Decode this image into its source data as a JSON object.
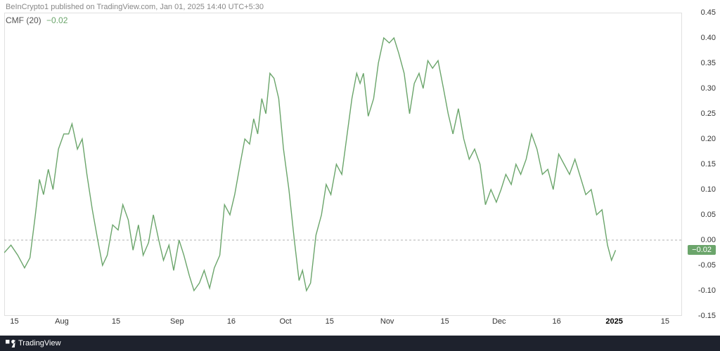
{
  "header": {
    "attribution": "BeInCrypto1 published on TradingView.com, Jan 01, 2025 14:40 UTC+5:30"
  },
  "indicator": {
    "name": "CMF (20)",
    "value": "−0.02",
    "value_color": "#6ba56b"
  },
  "footer": {
    "brand": "TradingView"
  },
  "chart": {
    "type": "line",
    "line_color": "#6ba56b",
    "line_width": 1.4,
    "background_color": "#ffffff",
    "border_color": "#e0e0e0",
    "zero_line_color": "#b0b0b0",
    "ylim": [
      -0.15,
      0.45
    ],
    "ytick_step": 0.05,
    "y_ticks": [
      {
        "v": 0.45,
        "label": "0.45"
      },
      {
        "v": 0.4,
        "label": "0.40"
      },
      {
        "v": 0.35,
        "label": "0.35"
      },
      {
        "v": 0.3,
        "label": "0.30"
      },
      {
        "v": 0.25,
        "label": "0.25"
      },
      {
        "v": 0.2,
        "label": "0.20"
      },
      {
        "v": 0.15,
        "label": "0.15"
      },
      {
        "v": 0.1,
        "label": "0.10"
      },
      {
        "v": 0.05,
        "label": "0.05"
      },
      {
        "v": 0.0,
        "label": "0.00"
      },
      {
        "v": -0.05,
        "label": "-0.05"
      },
      {
        "v": -0.1,
        "label": "-0.10"
      },
      {
        "v": -0.15,
        "label": "-0.15"
      }
    ],
    "x_ticks": [
      {
        "pos": 0.015,
        "label": "15"
      },
      {
        "pos": 0.085,
        "label": "Aug"
      },
      {
        "pos": 0.165,
        "label": "15"
      },
      {
        "pos": 0.255,
        "label": "Sep"
      },
      {
        "pos": 0.335,
        "label": "16"
      },
      {
        "pos": 0.415,
        "label": "Oct"
      },
      {
        "pos": 0.48,
        "label": "15"
      },
      {
        "pos": 0.565,
        "label": "Nov"
      },
      {
        "pos": 0.65,
        "label": "15"
      },
      {
        "pos": 0.73,
        "label": "Dec"
      },
      {
        "pos": 0.815,
        "label": "16"
      },
      {
        "pos": 0.9,
        "label": "2025",
        "bold": true
      },
      {
        "pos": 0.975,
        "label": "15"
      }
    ],
    "current_value": -0.02,
    "current_badge_label": "−0.02",
    "badge_bg": "#6ba56b",
    "badge_fg": "#ffffff",
    "series": [
      {
        "x": 0.0,
        "y": -0.025
      },
      {
        "x": 0.01,
        "y": -0.01
      },
      {
        "x": 0.02,
        "y": -0.03
      },
      {
        "x": 0.03,
        "y": -0.055
      },
      {
        "x": 0.038,
        "y": -0.035
      },
      {
        "x": 0.046,
        "y": 0.05
      },
      {
        "x": 0.052,
        "y": 0.12
      },
      {
        "x": 0.058,
        "y": 0.09
      },
      {
        "x": 0.065,
        "y": 0.14
      },
      {
        "x": 0.072,
        "y": 0.1
      },
      {
        "x": 0.08,
        "y": 0.18
      },
      {
        "x": 0.088,
        "y": 0.21
      },
      {
        "x": 0.095,
        "y": 0.21
      },
      {
        "x": 0.1,
        "y": 0.23
      },
      {
        "x": 0.108,
        "y": 0.18
      },
      {
        "x": 0.115,
        "y": 0.2
      },
      {
        "x": 0.122,
        "y": 0.13
      },
      {
        "x": 0.13,
        "y": 0.06
      },
      {
        "x": 0.138,
        "y": 0.0
      },
      {
        "x": 0.145,
        "y": -0.05
      },
      {
        "x": 0.152,
        "y": -0.03
      },
      {
        "x": 0.16,
        "y": 0.03
      },
      {
        "x": 0.168,
        "y": 0.02
      },
      {
        "x": 0.175,
        "y": 0.07
      },
      {
        "x": 0.183,
        "y": 0.04
      },
      {
        "x": 0.19,
        "y": -0.02
      },
      {
        "x": 0.198,
        "y": 0.03
      },
      {
        "x": 0.205,
        "y": -0.03
      },
      {
        "x": 0.213,
        "y": -0.005
      },
      {
        "x": 0.22,
        "y": 0.05
      },
      {
        "x": 0.228,
        "y": 0.0
      },
      {
        "x": 0.235,
        "y": -0.04
      },
      {
        "x": 0.243,
        "y": -0.01
      },
      {
        "x": 0.25,
        "y": -0.06
      },
      {
        "x": 0.258,
        "y": 0.0
      },
      {
        "x": 0.265,
        "y": -0.03
      },
      {
        "x": 0.273,
        "y": -0.07
      },
      {
        "x": 0.28,
        "y": -0.1
      },
      {
        "x": 0.288,
        "y": -0.085
      },
      {
        "x": 0.295,
        "y": -0.06
      },
      {
        "x": 0.303,
        "y": -0.095
      },
      {
        "x": 0.31,
        "y": -0.055
      },
      {
        "x": 0.318,
        "y": -0.03
      },
      {
        "x": 0.325,
        "y": 0.07
      },
      {
        "x": 0.333,
        "y": 0.05
      },
      {
        "x": 0.34,
        "y": 0.09
      },
      {
        "x": 0.348,
        "y": 0.15
      },
      {
        "x": 0.355,
        "y": 0.2
      },
      {
        "x": 0.362,
        "y": 0.19
      },
      {
        "x": 0.368,
        "y": 0.24
      },
      {
        "x": 0.374,
        "y": 0.21
      },
      {
        "x": 0.38,
        "y": 0.28
      },
      {
        "x": 0.386,
        "y": 0.25
      },
      {
        "x": 0.392,
        "y": 0.33
      },
      {
        "x": 0.398,
        "y": 0.32
      },
      {
        "x": 0.405,
        "y": 0.28
      },
      {
        "x": 0.412,
        "y": 0.18
      },
      {
        "x": 0.42,
        "y": 0.1
      },
      {
        "x": 0.428,
        "y": 0.0
      },
      {
        "x": 0.435,
        "y": -0.08
      },
      {
        "x": 0.44,
        "y": -0.06
      },
      {
        "x": 0.446,
        "y": -0.1
      },
      {
        "x": 0.452,
        "y": -0.085
      },
      {
        "x": 0.46,
        "y": 0.01
      },
      {
        "x": 0.468,
        "y": 0.05
      },
      {
        "x": 0.475,
        "y": 0.11
      },
      {
        "x": 0.482,
        "y": 0.09
      },
      {
        "x": 0.49,
        "y": 0.15
      },
      {
        "x": 0.498,
        "y": 0.13
      },
      {
        "x": 0.505,
        "y": 0.2
      },
      {
        "x": 0.513,
        "y": 0.28
      },
      {
        "x": 0.52,
        "y": 0.33
      },
      {
        "x": 0.525,
        "y": 0.31
      },
      {
        "x": 0.53,
        "y": 0.33
      },
      {
        "x": 0.537,
        "y": 0.245
      },
      {
        "x": 0.545,
        "y": 0.28
      },
      {
        "x": 0.552,
        "y": 0.35
      },
      {
        "x": 0.56,
        "y": 0.4
      },
      {
        "x": 0.568,
        "y": 0.39
      },
      {
        "x": 0.575,
        "y": 0.4
      },
      {
        "x": 0.582,
        "y": 0.37
      },
      {
        "x": 0.59,
        "y": 0.33
      },
      {
        "x": 0.598,
        "y": 0.25
      },
      {
        "x": 0.605,
        "y": 0.31
      },
      {
        "x": 0.612,
        "y": 0.33
      },
      {
        "x": 0.618,
        "y": 0.3
      },
      {
        "x": 0.625,
        "y": 0.355
      },
      {
        "x": 0.632,
        "y": 0.34
      },
      {
        "x": 0.64,
        "y": 0.355
      },
      {
        "x": 0.648,
        "y": 0.3
      },
      {
        "x": 0.655,
        "y": 0.25
      },
      {
        "x": 0.662,
        "y": 0.21
      },
      {
        "x": 0.67,
        "y": 0.26
      },
      {
        "x": 0.678,
        "y": 0.2
      },
      {
        "x": 0.686,
        "y": 0.16
      },
      {
        "x": 0.694,
        "y": 0.18
      },
      {
        "x": 0.702,
        "y": 0.15
      },
      {
        "x": 0.71,
        "y": 0.07
      },
      {
        "x": 0.718,
        "y": 0.1
      },
      {
        "x": 0.726,
        "y": 0.075
      },
      {
        "x": 0.733,
        "y": 0.1
      },
      {
        "x": 0.74,
        "y": 0.13
      },
      {
        "x": 0.748,
        "y": 0.11
      },
      {
        "x": 0.755,
        "y": 0.15
      },
      {
        "x": 0.762,
        "y": 0.13
      },
      {
        "x": 0.77,
        "y": 0.16
      },
      {
        "x": 0.778,
        "y": 0.21
      },
      {
        "x": 0.786,
        "y": 0.18
      },
      {
        "x": 0.794,
        "y": 0.13
      },
      {
        "x": 0.802,
        "y": 0.14
      },
      {
        "x": 0.81,
        "y": 0.1
      },
      {
        "x": 0.818,
        "y": 0.17
      },
      {
        "x": 0.826,
        "y": 0.15
      },
      {
        "x": 0.834,
        "y": 0.13
      },
      {
        "x": 0.842,
        "y": 0.16
      },
      {
        "x": 0.85,
        "y": 0.125
      },
      {
        "x": 0.858,
        "y": 0.09
      },
      {
        "x": 0.866,
        "y": 0.1
      },
      {
        "x": 0.874,
        "y": 0.05
      },
      {
        "x": 0.882,
        "y": 0.06
      },
      {
        "x": 0.89,
        "y": -0.01
      },
      {
        "x": 0.896,
        "y": -0.04
      },
      {
        "x": 0.902,
        "y": -0.02
      }
    ]
  }
}
